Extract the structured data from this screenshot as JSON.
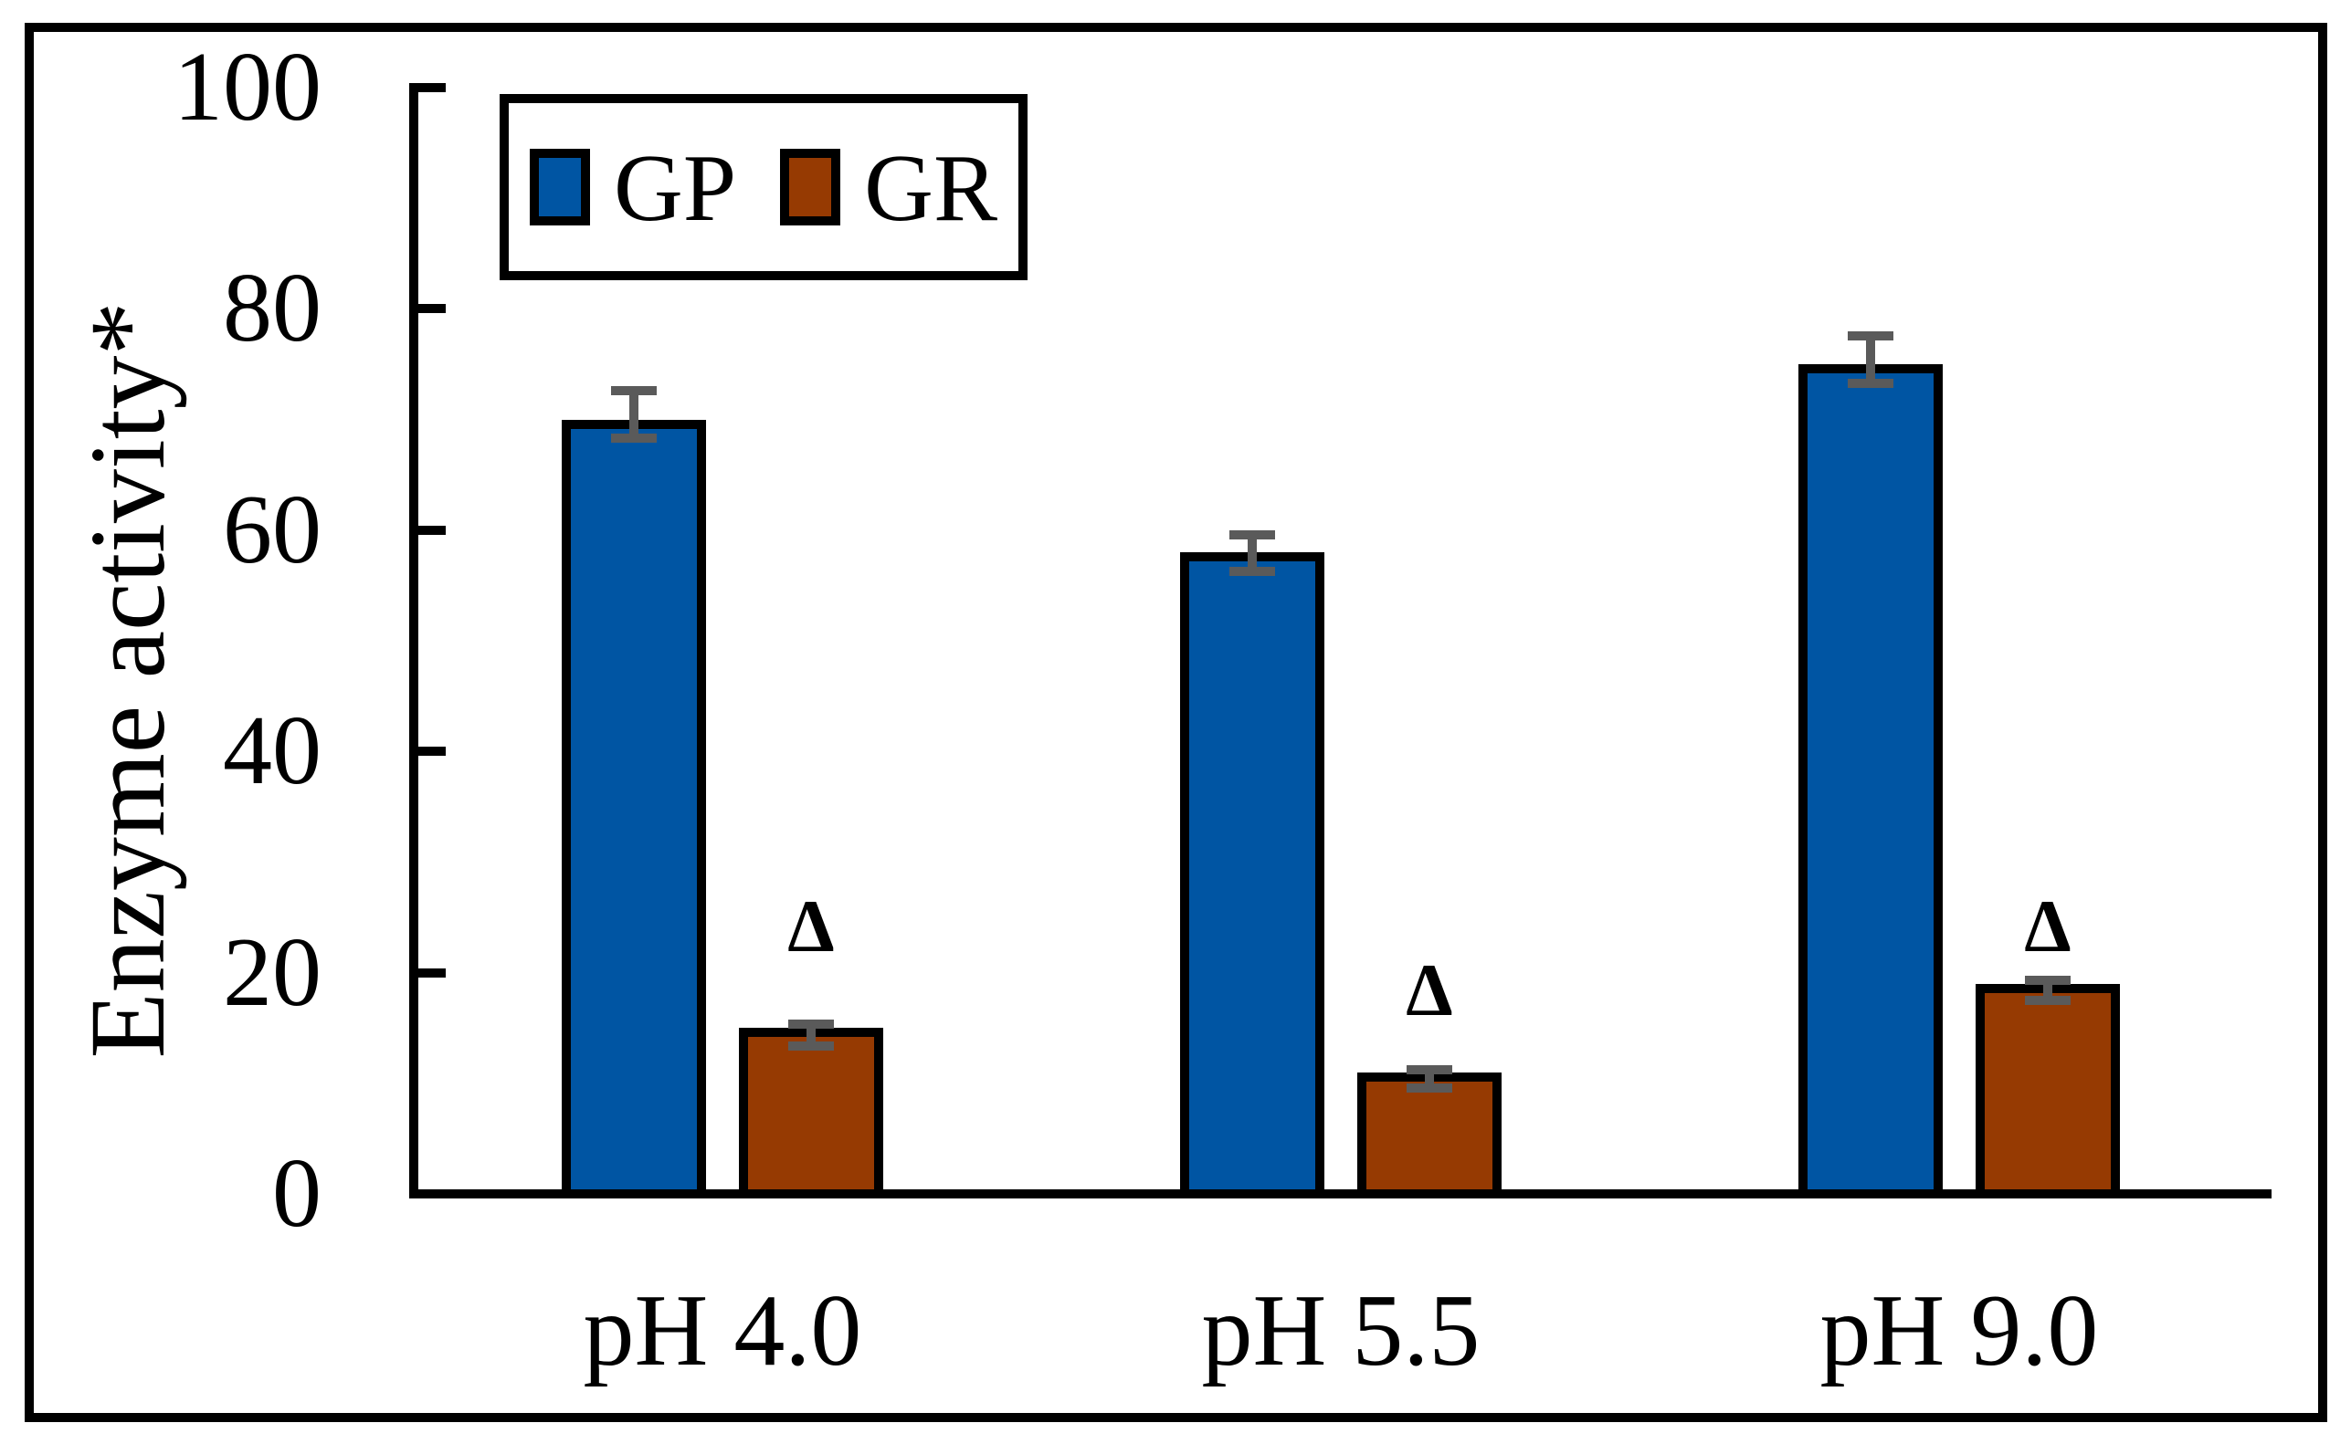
{
  "figure": {
    "ylabel": "Enzyme activity*"
  },
  "chart_data": {
    "type": "bar",
    "title": "",
    "categories": [
      "pH 4.0",
      "pH 5.5",
      "pH 9.0"
    ],
    "series": [
      {
        "name": "GP",
        "color": "#0055A3",
        "values": [
          70,
          58,
          75
        ],
        "error_plus": [
          3,
          2,
          3
        ],
        "error_minus": [
          1.3,
          1.3,
          1.3
        ]
      },
      {
        "name": "GR",
        "color": "#963A02",
        "values": [
          15,
          11,
          19
        ],
        "error_plus": [
          0.8,
          0.6,
          0.7
        ],
        "error_minus": [
          1.2,
          1.0,
          1.1
        ]
      }
    ],
    "xlabel": "",
    "ylabel": "Enzyme activity*",
    "ylim": [
      0,
      100
    ],
    "yticks": [
      0,
      20,
      40,
      60,
      80,
      100
    ],
    "grid": false,
    "legend_position": "top-left",
    "bar_border_color": "#000000",
    "error_bar_color": "#5A5A5A",
    "annotations": [
      {
        "text": "Δ",
        "series": "GR",
        "category": "pH 4.0",
        "y": 26
      },
      {
        "text": "Δ",
        "series": "GR",
        "category": "pH 5.5",
        "y": 20.2
      },
      {
        "text": "Δ",
        "series": "GR",
        "category": "pH 9.0",
        "y": 26
      }
    ]
  }
}
